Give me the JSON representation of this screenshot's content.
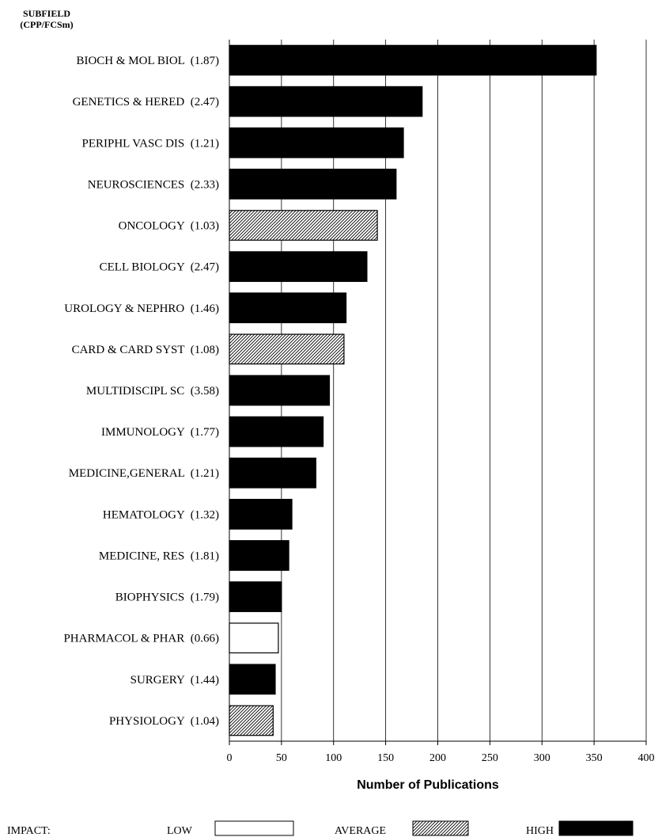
{
  "chart_data": {
    "type": "bar",
    "orientation": "horizontal",
    "header": [
      "SUBFIELD",
      "(CPP/FCSm)"
    ],
    "xlabel": "Number of Publications",
    "xlim": [
      0,
      400
    ],
    "xticks": [
      0,
      50,
      100,
      150,
      200,
      250,
      300,
      350,
      400
    ],
    "grid": "vertical",
    "categories": [
      "BIOCH & MOL BIOL  (1.87)",
      "GENETICS & HERED  (2.47)",
      "PERIPHL VASC DIS  (1.21)",
      "NEUROSCIENCES  (2.33)",
      "ONCOLOGY  (1.03)",
      "CELL BIOLOGY  (2.47)",
      "UROLOGY & NEPHRO  (1.46)",
      "CARD & CARD SYST  (1.08)",
      "MULTIDISCIPL SC  (3.58)",
      "IMMUNOLOGY  (1.77)",
      "MEDICINE,GENERAL  (1.21)",
      "HEMATOLOGY  (1.32)",
      "MEDICINE, RES  (1.81)",
      "BIOPHYSICS  (1.79)",
      "PHARMACOL & PHAR  (0.66)",
      "SURGERY  (1.44)",
      "PHYSIOLOGY  (1.04)"
    ],
    "values": [
      352,
      185,
      167,
      160,
      142,
      132,
      112,
      110,
      96,
      90,
      83,
      60,
      57,
      50,
      47,
      44,
      42
    ],
    "impact": [
      "high",
      "high",
      "high",
      "high",
      "average",
      "high",
      "high",
      "average",
      "high",
      "high",
      "high",
      "high",
      "high",
      "high",
      "low",
      "high",
      "average"
    ],
    "legend": {
      "title": "IMPACT:",
      "items": [
        {
          "key": "low",
          "label": "LOW"
        },
        {
          "key": "average",
          "label": "AVERAGE"
        },
        {
          "key": "high",
          "label": "HIGH"
        }
      ]
    }
  }
}
